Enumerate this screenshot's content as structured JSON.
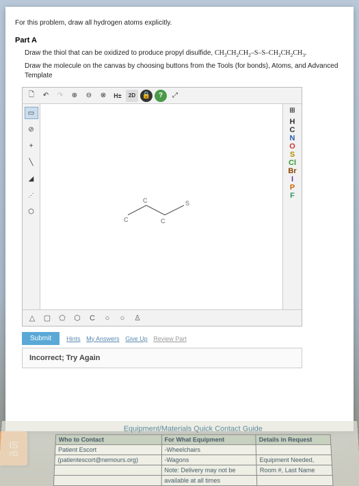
{
  "instructions": "For this problem, draw all hydrogen atoms explicitly.",
  "part": {
    "label": "Part A",
    "prompt_prefix": "Draw the thiol that can be oxidized to produce propyl disulfide, ",
    "formula_html": "CH₃CH₂CH₂–S–S–CH₂CH₂CH₃.",
    "prompt_line2": "Draw the molecule on the canvas by choosing buttons from the Tools (for bonds), Atoms, and Advanced Template"
  },
  "toolbar": {
    "top": [
      "new",
      "undo",
      "redo",
      "zoom-in",
      "zoom-out",
      "zoom-reset",
      "H±",
      "2D",
      "lock",
      "help",
      "expand"
    ],
    "top_glyph": [
      "🗋",
      "↶",
      "↷",
      "⊕",
      "⊖",
      "⊗",
      "H±",
      "2D",
      "🔒",
      "?",
      "⤢"
    ],
    "left": [
      "select",
      "erase",
      "plus",
      "single",
      "wedge",
      "hash",
      "ring"
    ],
    "left_glyph": [
      "▭",
      "⊘",
      "+",
      "╲",
      "◢",
      "⋰",
      "⬡"
    ],
    "right_periodic": "⊞",
    "atoms": [
      {
        "label": "H",
        "color": "#333333"
      },
      {
        "label": "C",
        "color": "#333333"
      },
      {
        "label": "N",
        "color": "#2a5aaa"
      },
      {
        "label": "O",
        "color": "#cc3333"
      },
      {
        "label": "S",
        "color": "#b08a00"
      },
      {
        "label": "Cl",
        "color": "#339933"
      },
      {
        "label": "Br",
        "color": "#884400"
      },
      {
        "label": "I",
        "color": "#663399"
      },
      {
        "label": "P",
        "color": "#cc6600"
      },
      {
        "label": "F",
        "color": "#339966"
      }
    ],
    "bottom": [
      "△",
      "▢",
      "⬠",
      "⬡",
      "C",
      "○",
      "○",
      "♙"
    ]
  },
  "molecule": {
    "labels": {
      "c1": "C",
      "c2": "C",
      "c3": "C",
      "s": "S"
    }
  },
  "submit": {
    "button": "Submit",
    "hints": "Hints",
    "answers": "My Answers",
    "giveup": "Give Up",
    "review": "Review Part"
  },
  "feedback": "Incorrect; Try Again",
  "guide": {
    "title": "Equipment/Materials Quick Contact Guide",
    "headers": [
      "Who to Contact",
      "For What Equipment",
      "Details in Request"
    ],
    "rows": [
      [
        "Patient Escort",
        "-Wheelchairs",
        ""
      ],
      [
        "(patientescort@nemours.org)",
        "-Wagons",
        "Equipment Needed,"
      ],
      [
        "",
        "Note: Delivery may not be",
        "Room #, Last Name"
      ],
      [
        "",
        "available at all times",
        ""
      ]
    ]
  },
  "tab": {
    "line1": "IS",
    "line2": "rID"
  }
}
